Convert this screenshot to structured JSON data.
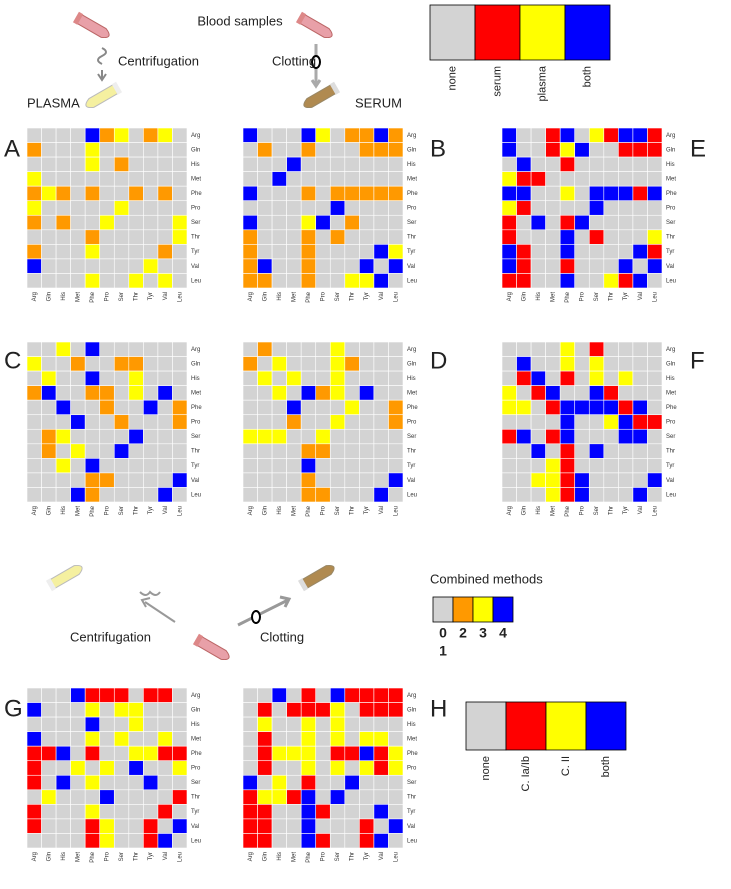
{
  "top_legend": {
    "labels": [
      "none",
      "serum",
      "plasma",
      "both"
    ],
    "colors": [
      "#d3d3d3",
      "#ff0000",
      "#ffff00",
      "#0000ff"
    ]
  },
  "top_diagram": {
    "title": "Blood samples",
    "left_step": "Centrifugation",
    "right_step": "Clotting",
    "left_product": "PLASMA",
    "right_product": "SERUM"
  },
  "axis_labels": [
    "Arg",
    "Gln",
    "His",
    "Met",
    "Phe",
    "Pro",
    "Ser",
    "Thr",
    "Tyr",
    "Val",
    "Leu"
  ],
  "combined_legend": {
    "title": "Combined methods",
    "labels": [
      "0",
      "2",
      "3",
      "4"
    ],
    "extra_label": "1",
    "colors": [
      "#d3d3d3",
      "#ff9900",
      "#ffff00",
      "#0000ff"
    ]
  },
  "bottom_diagram": {
    "left_step": "Centrifugation",
    "right_step": "Clotting"
  },
  "bottom_legend": {
    "labels": [
      "none",
      "C. Ia/Ib",
      "C. II",
      "both"
    ],
    "colors": [
      "#d3d3d3",
      "#ff0000",
      "#ffff00",
      "#0000ff"
    ]
  },
  "panels": [
    {
      "letter": "A",
      "palette": "combined_legend",
      "cells": [
        [
          0,
          0,
          0,
          0,
          3,
          1,
          2,
          0,
          1,
          2,
          0
        ],
        [
          1,
          0,
          0,
          0,
          2,
          0,
          0,
          0,
          0,
          0,
          0
        ],
        [
          0,
          0,
          0,
          0,
          2,
          0,
          1,
          0,
          0,
          0,
          0
        ],
        [
          2,
          0,
          0,
          0,
          0,
          0,
          0,
          0,
          0,
          0,
          0
        ],
        [
          1,
          2,
          1,
          0,
          1,
          0,
          0,
          1,
          0,
          1,
          0
        ],
        [
          2,
          0,
          0,
          0,
          0,
          0,
          2,
          0,
          0,
          0,
          0
        ],
        [
          1,
          0,
          1,
          0,
          0,
          2,
          0,
          0,
          0,
          0,
          2
        ],
        [
          0,
          0,
          0,
          0,
          1,
          0,
          0,
          0,
          0,
          0,
          2
        ],
        [
          1,
          0,
          0,
          0,
          2,
          0,
          0,
          0,
          0,
          1,
          0
        ],
        [
          3,
          0,
          0,
          0,
          0,
          0,
          0,
          0,
          2,
          0,
          0
        ],
        [
          0,
          0,
          0,
          0,
          2,
          0,
          0,
          2,
          0,
          2,
          0
        ]
      ]
    },
    {
      "letter": "B",
      "palette": "combined_legend",
      "cells": [
        [
          3,
          0,
          0,
          0,
          3,
          2,
          0,
          1,
          1,
          3,
          1
        ],
        [
          0,
          1,
          0,
          0,
          1,
          0,
          0,
          0,
          1,
          1,
          1
        ],
        [
          0,
          0,
          0,
          3,
          0,
          0,
          0,
          0,
          0,
          0,
          0
        ],
        [
          0,
          0,
          3,
          0,
          0,
          0,
          0,
          0,
          0,
          0,
          0
        ],
        [
          3,
          0,
          0,
          0,
          1,
          0,
          1,
          1,
          1,
          1,
          1
        ],
        [
          0,
          0,
          0,
          0,
          0,
          0,
          3,
          0,
          0,
          0,
          0
        ],
        [
          3,
          0,
          0,
          0,
          2,
          3,
          0,
          1,
          0,
          0,
          0
        ],
        [
          1,
          0,
          0,
          0,
          1,
          0,
          1,
          0,
          0,
          0,
          0
        ],
        [
          1,
          0,
          0,
          0,
          1,
          0,
          0,
          0,
          0,
          3,
          2
        ],
        [
          1,
          3,
          0,
          0,
          1,
          0,
          0,
          0,
          3,
          0,
          3
        ],
        [
          1,
          1,
          0,
          0,
          1,
          0,
          0,
          2,
          2,
          3,
          0
        ]
      ]
    },
    {
      "letter": "E",
      "palette": "top_legend",
      "cells": [
        [
          3,
          0,
          0,
          1,
          3,
          0,
          2,
          1,
          3,
          3,
          1
        ],
        [
          3,
          0,
          0,
          1,
          2,
          3,
          0,
          0,
          1,
          1,
          1
        ],
        [
          0,
          3,
          0,
          0,
          1,
          0,
          0,
          0,
          0,
          0,
          0
        ],
        [
          2,
          1,
          1,
          0,
          0,
          0,
          0,
          0,
          0,
          0,
          0
        ],
        [
          3,
          3,
          0,
          0,
          2,
          0,
          3,
          3,
          3,
          1,
          3
        ],
        [
          2,
          1,
          0,
          0,
          0,
          0,
          3,
          0,
          0,
          0,
          0
        ],
        [
          1,
          0,
          3,
          0,
          1,
          3,
          0,
          0,
          0,
          0,
          0
        ],
        [
          1,
          0,
          0,
          0,
          3,
          0,
          1,
          0,
          0,
          0,
          2
        ],
        [
          3,
          1,
          0,
          0,
          3,
          0,
          0,
          0,
          0,
          3,
          1
        ],
        [
          3,
          1,
          0,
          0,
          1,
          0,
          0,
          0,
          3,
          0,
          3
        ],
        [
          1,
          1,
          0,
          0,
          3,
          0,
          0,
          2,
          1,
          3,
          0
        ]
      ]
    },
    {
      "letter": "C",
      "palette": "combined_legend",
      "cells": [
        [
          0,
          0,
          2,
          0,
          3,
          0,
          0,
          0,
          0,
          0,
          0
        ],
        [
          2,
          0,
          0,
          1,
          0,
          0,
          1,
          1,
          0,
          0,
          0
        ],
        [
          0,
          2,
          0,
          0,
          3,
          0,
          0,
          2,
          0,
          0,
          0
        ],
        [
          1,
          3,
          0,
          0,
          1,
          1,
          0,
          2,
          0,
          3,
          0
        ],
        [
          0,
          0,
          3,
          0,
          0,
          1,
          0,
          0,
          3,
          0,
          1
        ],
        [
          0,
          0,
          0,
          3,
          0,
          0,
          1,
          0,
          0,
          0,
          1
        ],
        [
          0,
          1,
          2,
          0,
          0,
          0,
          0,
          3,
          0,
          0,
          0
        ],
        [
          0,
          1,
          0,
          2,
          0,
          0,
          3,
          0,
          0,
          0,
          0
        ],
        [
          0,
          0,
          2,
          0,
          3,
          0,
          0,
          0,
          0,
          0,
          0
        ],
        [
          0,
          0,
          0,
          0,
          1,
          1,
          0,
          0,
          0,
          0,
          3
        ],
        [
          0,
          0,
          0,
          3,
          1,
          0,
          0,
          0,
          0,
          3,
          0
        ]
      ]
    },
    {
      "letter": "D",
      "palette": "combined_legend",
      "cells": [
        [
          0,
          1,
          0,
          0,
          0,
          0,
          2,
          0,
          0,
          0,
          0
        ],
        [
          1,
          0,
          2,
          0,
          0,
          0,
          2,
          1,
          0,
          0,
          0
        ],
        [
          0,
          2,
          0,
          2,
          0,
          0,
          2,
          0,
          0,
          0,
          0
        ],
        [
          0,
          0,
          2,
          0,
          3,
          1,
          2,
          0,
          3,
          0,
          0
        ],
        [
          0,
          0,
          0,
          3,
          0,
          0,
          0,
          2,
          0,
          0,
          1
        ],
        [
          0,
          0,
          0,
          1,
          0,
          0,
          2,
          0,
          0,
          0,
          1
        ],
        [
          2,
          2,
          2,
          0,
          0,
          2,
          0,
          0,
          0,
          0,
          0
        ],
        [
          0,
          0,
          0,
          0,
          1,
          1,
          0,
          0,
          0,
          0,
          0
        ],
        [
          0,
          0,
          0,
          0,
          3,
          0,
          0,
          0,
          0,
          0,
          0
        ],
        [
          0,
          0,
          0,
          0,
          1,
          0,
          0,
          0,
          0,
          0,
          3
        ],
        [
          0,
          0,
          0,
          0,
          1,
          1,
          0,
          0,
          0,
          3,
          0
        ]
      ]
    },
    {
      "letter": "F",
      "palette": "top_legend",
      "cells": [
        [
          0,
          0,
          0,
          0,
          2,
          0,
          1,
          0,
          0,
          0,
          0
        ],
        [
          0,
          3,
          0,
          0,
          2,
          0,
          2,
          0,
          0,
          0,
          0
        ],
        [
          0,
          1,
          3,
          0,
          1,
          0,
          2,
          0,
          2,
          0,
          0
        ],
        [
          2,
          0,
          1,
          3,
          0,
          0,
          3,
          1,
          0,
          0,
          0
        ],
        [
          2,
          2,
          0,
          1,
          3,
          3,
          3,
          3,
          1,
          3,
          0
        ],
        [
          0,
          0,
          0,
          0,
          3,
          0,
          0,
          2,
          3,
          1,
          1
        ],
        [
          1,
          3,
          0,
          1,
          3,
          0,
          0,
          0,
          3,
          3,
          0
        ],
        [
          0,
          0,
          3,
          0,
          1,
          0,
          3,
          0,
          0,
          0,
          0
        ],
        [
          0,
          0,
          0,
          2,
          1,
          0,
          0,
          0,
          0,
          0,
          0
        ],
        [
          0,
          0,
          2,
          2,
          1,
          3,
          0,
          0,
          0,
          0,
          3
        ],
        [
          0,
          0,
          0,
          2,
          1,
          3,
          0,
          0,
          0,
          3,
          0
        ]
      ]
    },
    {
      "letter": "G",
      "palette": "bottom_legend",
      "cells": [
        [
          0,
          0,
          0,
          3,
          1,
          1,
          1,
          0,
          1,
          1,
          0
        ],
        [
          3,
          0,
          0,
          0,
          2,
          0,
          2,
          2,
          0,
          0,
          0
        ],
        [
          0,
          0,
          0,
          0,
          3,
          0,
          0,
          2,
          0,
          0,
          0
        ],
        [
          3,
          0,
          0,
          0,
          2,
          0,
          2,
          0,
          0,
          2,
          0
        ],
        [
          1,
          1,
          3,
          0,
          1,
          0,
          0,
          2,
          2,
          1,
          1
        ],
        [
          1,
          0,
          0,
          2,
          0,
          2,
          0,
          3,
          0,
          0,
          2
        ],
        [
          1,
          0,
          3,
          0,
          2,
          0,
          0,
          0,
          3,
          0,
          0
        ],
        [
          0,
          2,
          0,
          0,
          0,
          3,
          0,
          0,
          0,
          0,
          1
        ],
        [
          1,
          0,
          0,
          0,
          2,
          0,
          0,
          0,
          0,
          1,
          0
        ],
        [
          1,
          0,
          0,
          0,
          1,
          2,
          0,
          0,
          1,
          0,
          3
        ],
        [
          0,
          0,
          0,
          0,
          1,
          2,
          0,
          0,
          1,
          3,
          0
        ]
      ]
    },
    {
      "letter": "H",
      "palette": "bottom_legend",
      "cells": [
        [
          0,
          0,
          3,
          0,
          1,
          0,
          3,
          1,
          1,
          1,
          1
        ],
        [
          0,
          1,
          0,
          1,
          1,
          1,
          2,
          0,
          1,
          1,
          1
        ],
        [
          0,
          2,
          0,
          0,
          2,
          0,
          2,
          0,
          0,
          0,
          0
        ],
        [
          0,
          1,
          0,
          0,
          2,
          0,
          2,
          0,
          2,
          2,
          0
        ],
        [
          0,
          1,
          2,
          2,
          2,
          0,
          1,
          1,
          3,
          1,
          2
        ],
        [
          0,
          1,
          0,
          0,
          2,
          0,
          2,
          0,
          2,
          1,
          2
        ],
        [
          3,
          0,
          2,
          0,
          1,
          0,
          0,
          3,
          0,
          0,
          0
        ],
        [
          1,
          2,
          2,
          1,
          3,
          0,
          3,
          0,
          0,
          0,
          0
        ],
        [
          1,
          1,
          0,
          0,
          3,
          1,
          0,
          0,
          0,
          3,
          0
        ],
        [
          1,
          1,
          0,
          0,
          3,
          0,
          0,
          0,
          1,
          0,
          3
        ],
        [
          1,
          1,
          0,
          0,
          3,
          1,
          0,
          0,
          1,
          3,
          0
        ]
      ]
    }
  ]
}
